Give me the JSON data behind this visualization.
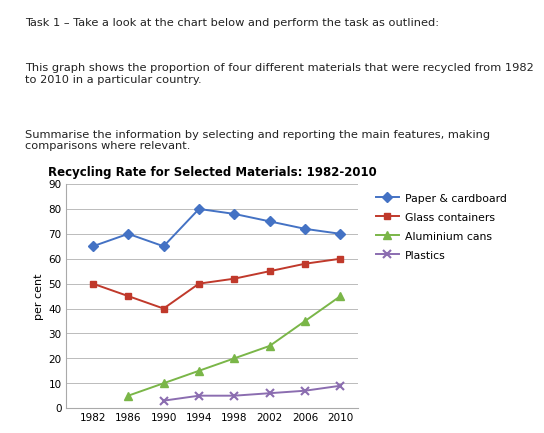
{
  "title": "Recycling Rate for Selected Materials: 1982-2010",
  "ylabel": "per cent",
  "years": [
    1982,
    1986,
    1990,
    1994,
    1998,
    2002,
    2006,
    2010
  ],
  "series": {
    "Paper & cardboard": {
      "values": [
        65,
        70,
        65,
        80,
        78,
        75,
        72,
        70
      ],
      "color": "#4472C4",
      "marker": "D",
      "markersize": 5
    },
    "Glass containers": {
      "values": [
        50,
        45,
        40,
        50,
        52,
        55,
        58,
        60
      ],
      "color": "#C0392B",
      "marker": "s",
      "markersize": 5
    },
    "Aluminium cans": {
      "values": [
        null,
        5,
        10,
        15,
        20,
        25,
        35,
        45
      ],
      "color": "#7AB648",
      "marker": "^",
      "markersize": 6
    },
    "Plastics": {
      "values": [
        null,
        null,
        3,
        5,
        5,
        6,
        7,
        9
      ],
      "color": "#8B6DB0",
      "marker": "x",
      "markersize": 6,
      "markeredgewidth": 1.5
    }
  },
  "ylim": [
    0,
    90
  ],
  "yticks": [
    0,
    10,
    20,
    30,
    40,
    50,
    60,
    70,
    80,
    90
  ],
  "xticks": [
    1982,
    1986,
    1990,
    1994,
    1998,
    2002,
    2006,
    2010
  ],
  "legend_order": [
    "Paper & cardboard",
    "Glass containers",
    "Aluminium cans",
    "Plastics"
  ],
  "text_line1": "Task 1 – Take a look at the chart below and perform the task as outlined:",
  "text_line2": "This graph shows the proportion of four different materials that were recycled from 1982\nto 2010 in a particular country.",
  "text_line3": "Summarise the information by selecting and reporting the main features, making\ncomparisons where relevant.",
  "background_color": "#ffffff",
  "grid_color": "#bbbbbb",
  "text_color": "#222222"
}
